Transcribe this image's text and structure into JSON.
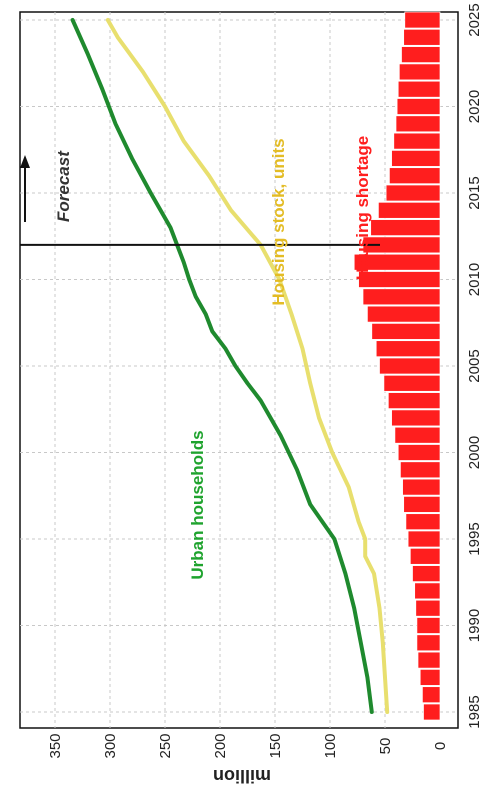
{
  "chart_data": {
    "type": "line",
    "orientation": "rotated 90 degrees clockwise (years run along the right edge, values along the bottom edge)",
    "xlabel": "",
    "ylabel": "million",
    "x_ticks": [
      1985,
      1990,
      1995,
      2000,
      2005,
      2010,
      2015,
      2020,
      2025
    ],
    "y_ticks": [
      0,
      50,
      100,
      150,
      200,
      250,
      300,
      350
    ],
    "xlim": [
      1985,
      2025
    ],
    "ylim": [
      0,
      360
    ],
    "grid": true,
    "forecast": {
      "year": 2012,
      "label": "Forecast"
    },
    "series": [
      {
        "name": "Urban households",
        "type": "line",
        "color": "#1f8a2e",
        "label_color": "#1fa32e",
        "points": [
          [
            1985,
            62
          ],
          [
            1987,
            66
          ],
          [
            1989,
            72
          ],
          [
            1991,
            78
          ],
          [
            1993,
            86
          ],
          [
            1995,
            96
          ],
          [
            1997,
            118
          ],
          [
            1999,
            130
          ],
          [
            2001,
            145
          ],
          [
            2003,
            163
          ],
          [
            2004,
            175
          ],
          [
            2005,
            186
          ],
          [
            2006,
            195
          ],
          [
            2007,
            207
          ],
          [
            2008,
            213
          ],
          [
            2009,
            222
          ],
          [
            2010,
            228
          ],
          [
            2011,
            233
          ],
          [
            2013,
            245
          ],
          [
            2015,
            263
          ],
          [
            2017,
            280
          ],
          [
            2019,
            295
          ],
          [
            2021,
            307
          ],
          [
            2023,
            320
          ],
          [
            2025,
            334
          ]
        ]
      },
      {
        "name": "Housing stock, units",
        "type": "line",
        "color": "#e8df6e",
        "label_color": "#e3bc25",
        "points": [
          [
            1985,
            48
          ],
          [
            1987,
            50
          ],
          [
            1989,
            52
          ],
          [
            1991,
            55
          ],
          [
            1993,
            60
          ],
          [
            1994,
            68
          ],
          [
            1995,
            68
          ],
          [
            1996,
            74
          ],
          [
            1998,
            83
          ],
          [
            2000,
            98
          ],
          [
            2002,
            110
          ],
          [
            2004,
            118
          ],
          [
            2006,
            125
          ],
          [
            2008,
            135
          ],
          [
            2010,
            146
          ],
          [
            2012,
            163
          ],
          [
            2014,
            190
          ],
          [
            2016,
            210
          ],
          [
            2018,
            233
          ],
          [
            2020,
            250
          ],
          [
            2022,
            270
          ],
          [
            2024,
            293
          ],
          [
            2025,
            302
          ]
        ]
      },
      {
        "name": "Housing shortage",
        "type": "bar",
        "color": "#ff1e1e",
        "label_color": "#ff1e1e",
        "x": [
          1985,
          1986,
          1987,
          1988,
          1989,
          1990,
          1991,
          1992,
          1993,
          1994,
          1995,
          1996,
          1997,
          1998,
          1999,
          2000,
          2001,
          2002,
          2003,
          2004,
          2005,
          2006,
          2007,
          2008,
          2009,
          2010,
          2011,
          2012,
          2013,
          2014,
          2015,
          2016,
          2017,
          2018,
          2019,
          2020,
          2021,
          2022,
          2023,
          2024,
          2025
        ],
        "values": [
          15,
          16,
          18,
          20,
          21,
          21,
          22,
          23,
          25,
          27,
          29,
          31,
          33,
          34,
          36,
          38,
          41,
          44,
          47,
          51,
          55,
          58,
          62,
          66,
          70,
          74,
          78,
          70,
          63,
          56,
          49,
          46,
          44,
          42,
          40,
          39,
          38,
          37,
          35,
          33,
          32
        ]
      }
    ]
  }
}
